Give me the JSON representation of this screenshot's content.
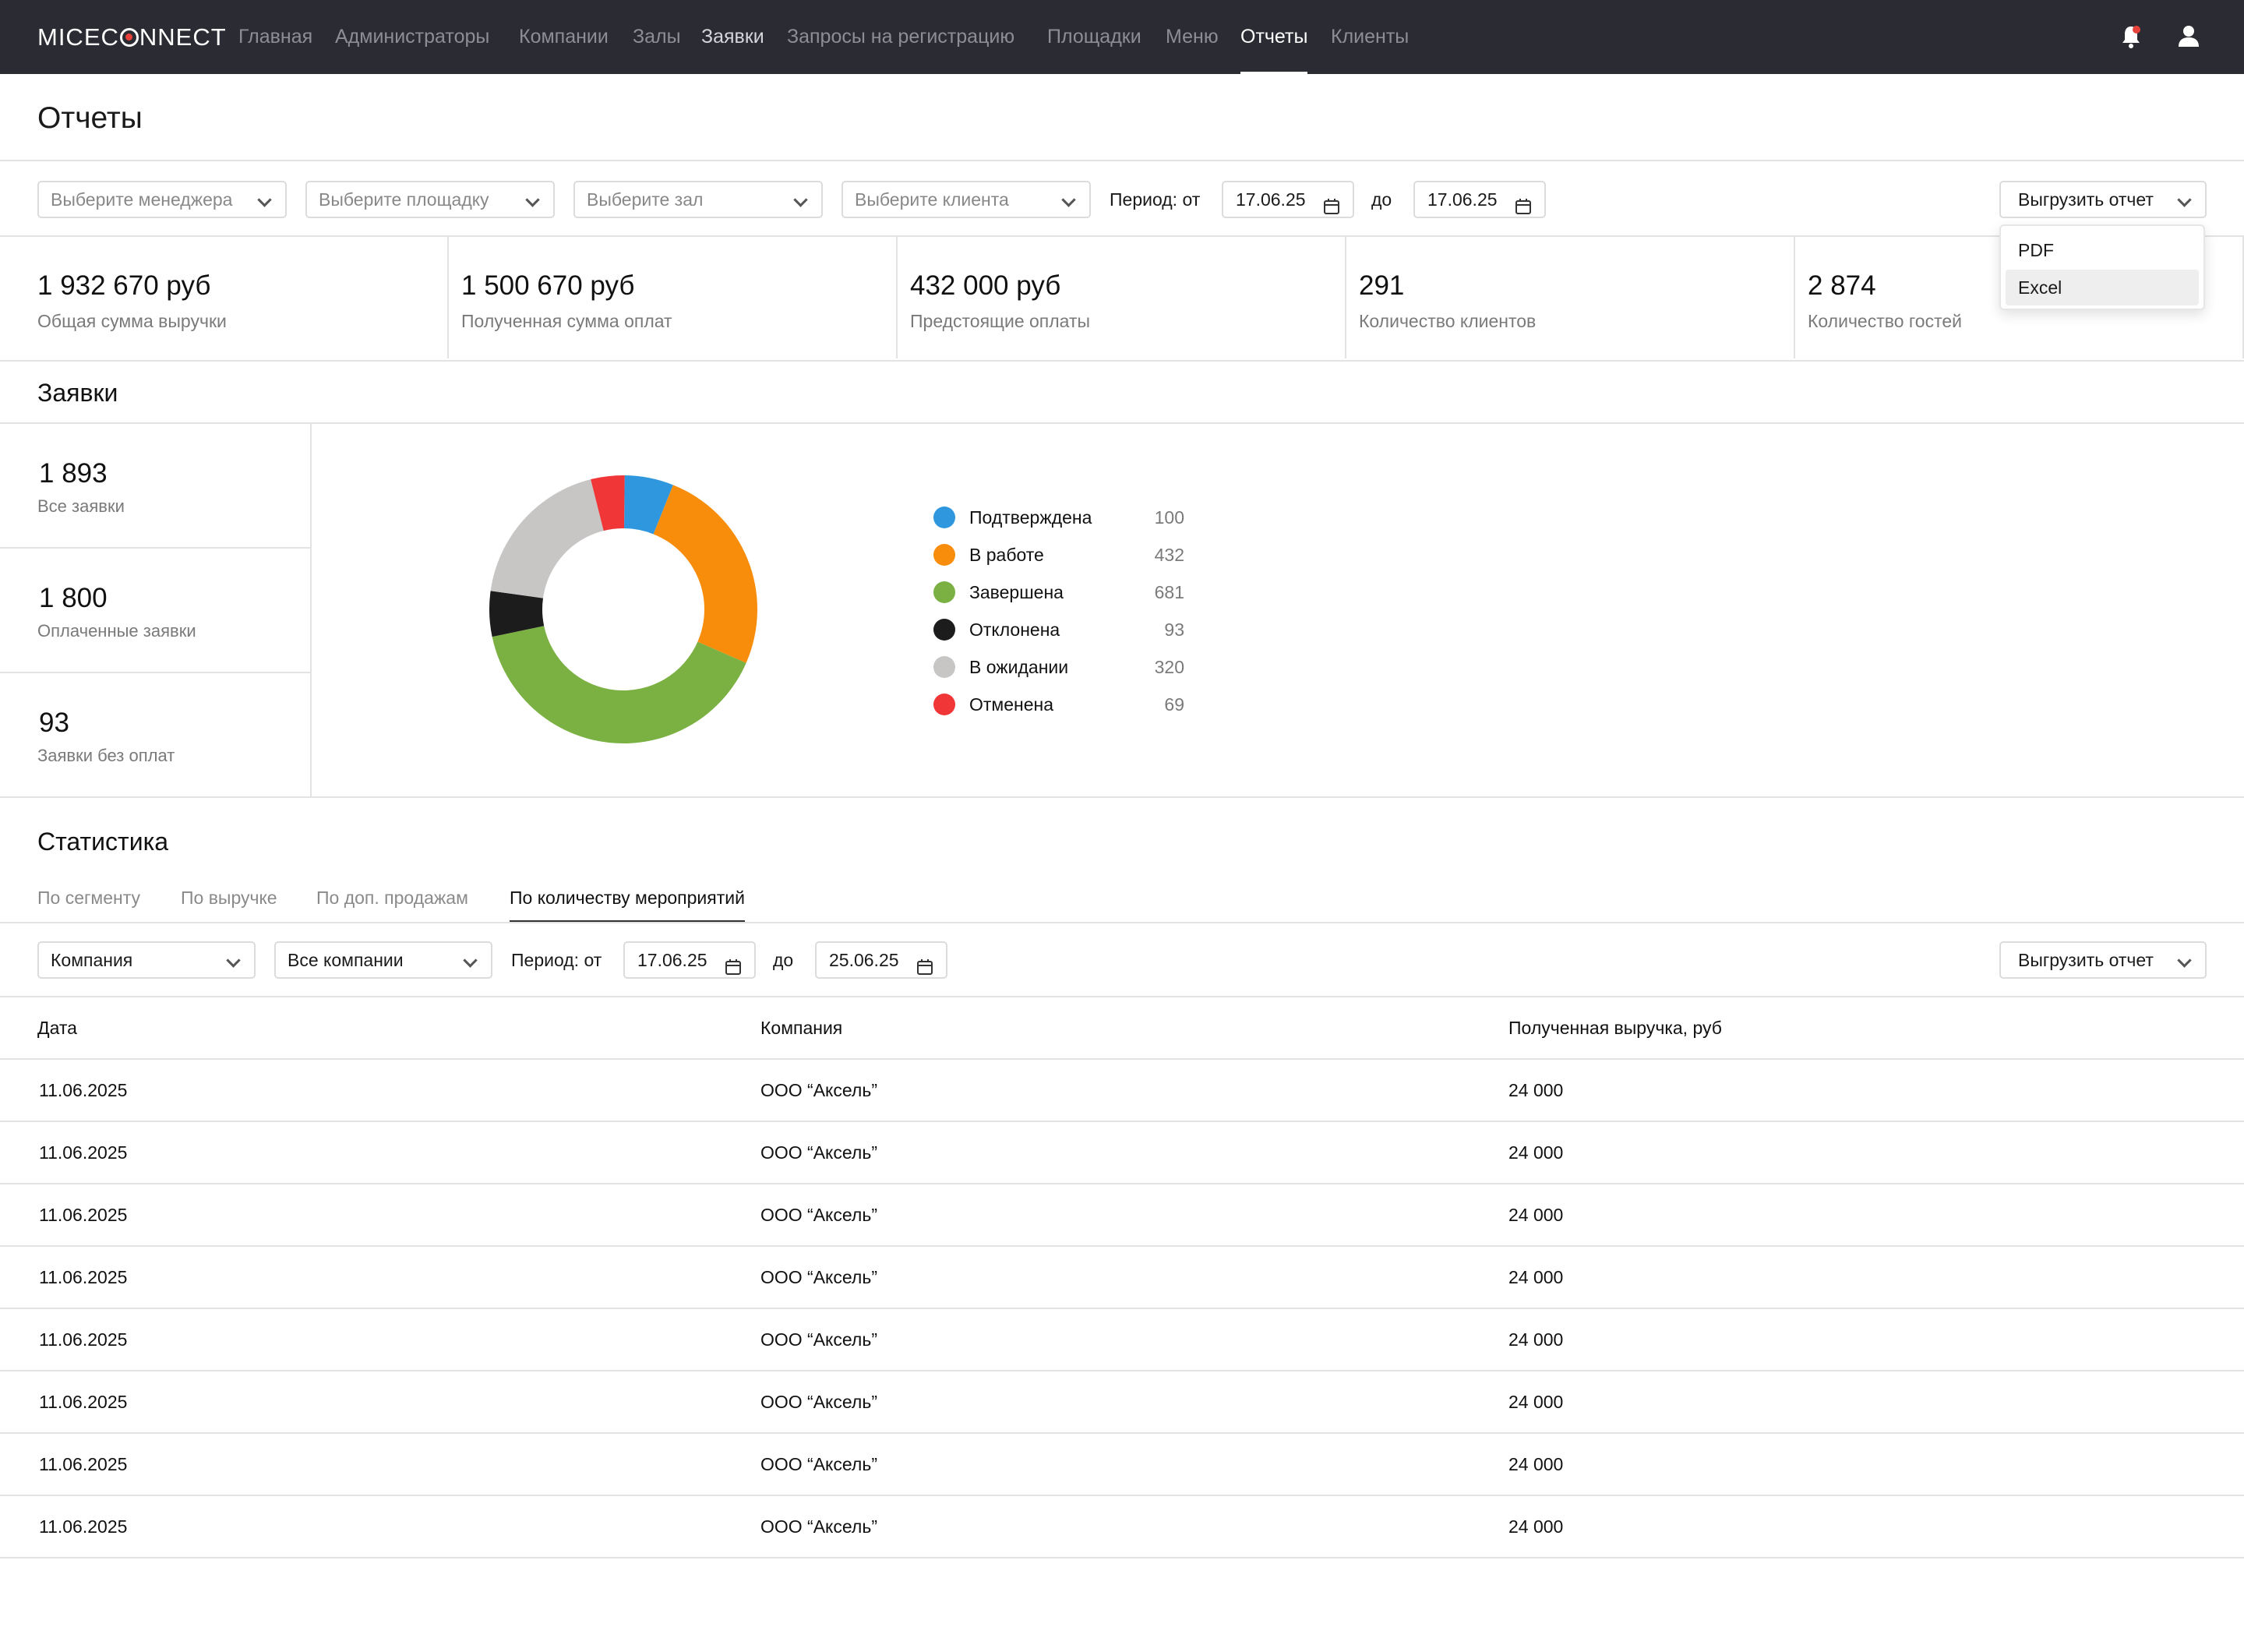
{
  "app": {
    "logo_text": "MICECONNECT"
  },
  "nav": {
    "items": [
      {
        "label": "Главная"
      },
      {
        "label": "Администраторы"
      },
      {
        "label": "Компании"
      },
      {
        "label": "Залы"
      },
      {
        "label": "Заявки"
      },
      {
        "label": "Запросы на регистрацию"
      },
      {
        "label": "Площадки"
      },
      {
        "label": "Меню"
      },
      {
        "label": "Отчеты"
      },
      {
        "label": "Клиенты"
      }
    ],
    "active": "Отчеты",
    "icons": [
      "bell-icon",
      "user-icon"
    ]
  },
  "page": {
    "title": "Отчеты"
  },
  "filters": {
    "manager_placeholder": "Выберите менеджера",
    "venue_placeholder": "Выберите площадку",
    "hall_placeholder": "Выберите зал",
    "client_placeholder": "Выберите клиента",
    "period_from_label": "Период: от",
    "date_from": "17.06.25",
    "period_to_label": "до",
    "date_to": "17.06.25",
    "export_label": "Выгрузить отчет",
    "export_options": [
      "PDF",
      "Excel"
    ],
    "hovered_option": "Excel"
  },
  "kpis": [
    {
      "value": "1 932 670 руб",
      "label": "Общая сумма выручки"
    },
    {
      "value": "1 500 670 руб",
      "label": "Полученная сумма оплат"
    },
    {
      "value": "432 000 руб",
      "label": "Предстоящие оплаты"
    },
    {
      "value": "291",
      "label": "Количество клиентов"
    },
    {
      "value": "2 874",
      "label": "Количество гостей"
    }
  ],
  "requests": {
    "title": "Заявки",
    "cards": [
      {
        "value": "1 893",
        "label": "Все заявки"
      },
      {
        "value": "1 800",
        "label": "Оплаченные заявки"
      },
      {
        "value": "93",
        "label": "Заявки без оплат"
      }
    ]
  },
  "chart_data": {
    "type": "pie",
    "variant": "donut",
    "slices": [
      {
        "label": "Подтверждена",
        "value": 100,
        "color": "#2f97de"
      },
      {
        "label": "В работе",
        "value": 432,
        "color": "#f88d0c"
      },
      {
        "label": "Завершена",
        "value": 681,
        "color": "#7bb143"
      },
      {
        "label": "Отклонена",
        "value": 93,
        "color": "#1c1c1c"
      },
      {
        "label": "В ожидании",
        "value": 320,
        "color": "#c8c5c5"
      },
      {
        "label": "Отменена",
        "value": 69,
        "color": "#f03637"
      }
    ],
    "legend_position": "right"
  },
  "statistics": {
    "title": "Статистика",
    "tabs": [
      {
        "label": "По сегменту"
      },
      {
        "label": "По выручке"
      },
      {
        "label": "По доп. продажам"
      },
      {
        "label": "По количеству мероприятий"
      }
    ],
    "active_tab": "По количеству мероприятий",
    "filters": {
      "group_by": "Компания",
      "company": "Все компании",
      "period_from_label": "Период: от",
      "date_from": "17.06.25",
      "period_to_label": "до",
      "date_to": "25.06.25",
      "export_label": "Выгрузить отчет"
    },
    "table": {
      "columns": [
        "Дата",
        "Компания",
        "Полученная выручка, руб"
      ],
      "rows": [
        [
          "11.06.2025",
          "ООО “Аксель”",
          "24 000"
        ],
        [
          "11.06.2025",
          "ООО “Аксель”",
          "24 000"
        ],
        [
          "11.06.2025",
          "ООО “Аксель”",
          "24 000"
        ],
        [
          "11.06.2025",
          "ООО “Аксель”",
          "24 000"
        ],
        [
          "11.06.2025",
          "ООО “Аксель”",
          "24 000"
        ],
        [
          "11.06.2025",
          "ООО “Аксель”",
          "24 000"
        ],
        [
          "11.06.2025",
          "ООО “Аксель”",
          "24 000"
        ],
        [
          "11.06.2025",
          "ООО “Аксель”",
          "24 000"
        ]
      ]
    }
  },
  "colors": {
    "header_bg": "#2b2c33",
    "accent": "#e8403a"
  }
}
